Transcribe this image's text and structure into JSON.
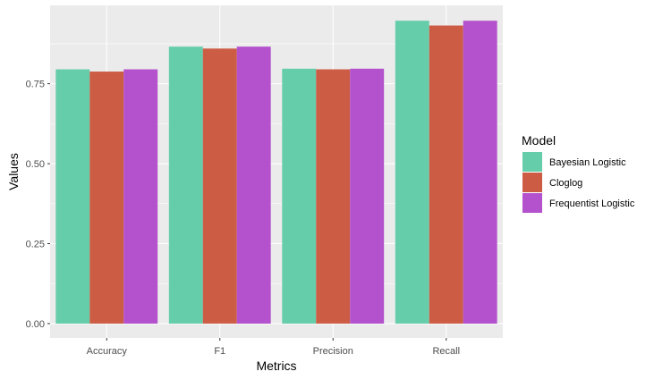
{
  "chart_data": {
    "type": "bar",
    "categories": [
      "Accuracy",
      "F1",
      "Precision",
      "Recall"
    ],
    "series": [
      {
        "name": "Bayesian Logistic",
        "color": "#66CDAA",
        "values": [
          0.795,
          0.866,
          0.797,
          0.947
        ]
      },
      {
        "name": "Cloglog",
        "color": "#CD5C45",
        "values": [
          0.788,
          0.86,
          0.795,
          0.932
        ]
      },
      {
        "name": "Frequentist Logistic",
        "color": "#B452CD",
        "values": [
          0.795,
          0.866,
          0.797,
          0.947
        ]
      }
    ],
    "xlabel": "Metrics",
    "ylabel": "Values",
    "yticks": [
      "0.00",
      "0.25",
      "0.50",
      "0.75"
    ],
    "ylim": [
      -0.045,
      0.995
    ],
    "grid": true,
    "legend": {
      "title": "Model",
      "position": "right"
    },
    "colors": {
      "panel_background": "#EBEBEB",
      "grid": "#FFFFFF",
      "tick_text": "#4D4D4D"
    }
  }
}
